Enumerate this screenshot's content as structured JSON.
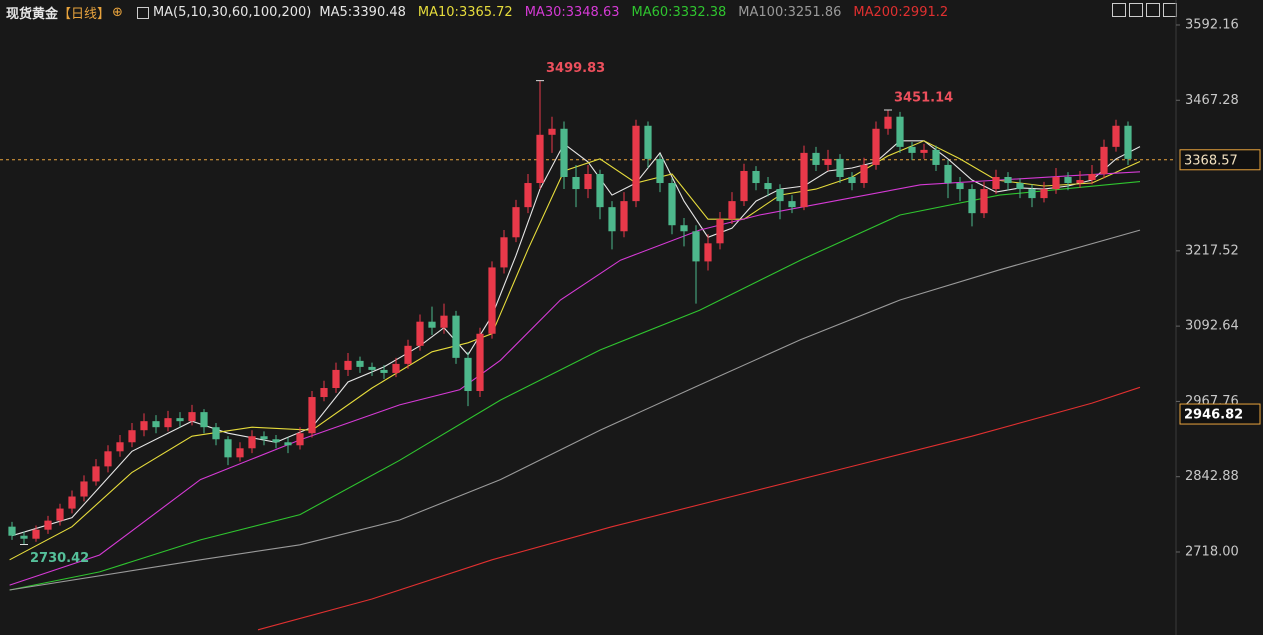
{
  "chart_data": {
    "type": "candlestick",
    "title": "现货黄金",
    "period": "【日线】",
    "indicator": "MA(5,10,30,60,100,200)",
    "up_color": "#e8394a",
    "down_color": "#4db88c",
    "xlim": [
      -1,
      97
    ],
    "ylim": [
      2580.3,
      3633.6
    ],
    "yticks": [
      3592.16,
      3467.28,
      3217.52,
      3092.64,
      2967.76,
      2842.88,
      {
        "value": 2718,
        "label": "2718.00"
      }
    ],
    "open": [
      2760,
      2745,
      2740,
      2755,
      2770,
      2790,
      2810,
      2835,
      2860,
      2885,
      2900,
      2920,
      2935,
      2925,
      2940,
      2935,
      2950,
      2925,
      2905,
      2875,
      2890,
      2910,
      2905,
      2900,
      2895,
      2915,
      2975,
      2990,
      3020,
      3035,
      3025,
      3020,
      3015,
      3030,
      3060,
      3100,
      3090,
      3110,
      3040,
      2985,
      3080,
      3190,
      3240,
      3290,
      3330,
      3410,
      3420,
      3340,
      3320,
      3345,
      3290,
      3250,
      3300,
      3425,
      3370,
      3330,
      3260,
      3250,
      3200,
      3230,
      3270,
      3300,
      3350,
      3330,
      3320,
      3300,
      3290,
      3380,
      3360,
      3370,
      3340,
      3330,
      3360,
      3420,
      3440,
      3390,
      3380,
      3385,
      3360,
      3330,
      3320,
      3280,
      3320,
      3340,
      3330,
      3320,
      3305,
      3320,
      3340,
      3330,
      3335,
      3345,
      3390,
      3425
    ],
    "close": [
      2745,
      2740,
      2755,
      2770,
      2790,
      2810,
      2835,
      2860,
      2885,
      2900,
      2920,
      2935,
      2925,
      2940,
      2935,
      2950,
      2925,
      2905,
      2875,
      2890,
      2910,
      2905,
      2900,
      2895,
      2915,
      2975,
      2990,
      3020,
      3035,
      3025,
      3020,
      3015,
      3030,
      3060,
      3100,
      3090,
      3110,
      3040,
      2985,
      3080,
      3190,
      3240,
      3290,
      3330,
      3410,
      3420,
      3340,
      3320,
      3345,
      3290,
      3250,
      3300,
      3425,
      3370,
      3330,
      3260,
      3250,
      3200,
      3230,
      3270,
      3300,
      3350,
      3330,
      3320,
      3300,
      3290,
      3380,
      3360,
      3370,
      3340,
      3330,
      3360,
      3420,
      3440,
      3390,
      3380,
      3385,
      3360,
      3330,
      3320,
      3280,
      3320,
      3340,
      3330,
      3320,
      3305,
      3320,
      3340,
      3330,
      3335,
      3345,
      3390,
      3425,
      3370
    ],
    "high": [
      2768,
      2752,
      2762,
      2778,
      2798,
      2820,
      2845,
      2872,
      2895,
      2912,
      2932,
      2948,
      2945,
      2952,
      2950,
      2962,
      2955,
      2932,
      2910,
      2900,
      2920,
      2918,
      2912,
      2908,
      2925,
      2985,
      3002,
      3032,
      3048,
      3042,
      3032,
      3028,
      3040,
      3070,
      3112,
      3125,
      3130,
      3118,
      3050,
      3090,
      3200,
      3252,
      3302,
      3345,
      3499.83,
      3440,
      3432,
      3360,
      3360,
      3352,
      3300,
      3315,
      3435,
      3432,
      3378,
      3338,
      3272,
      3260,
      3245,
      3282,
      3315,
      3362,
      3358,
      3340,
      3328,
      3310,
      3392,
      3390,
      3385,
      3378,
      3348,
      3372,
      3432,
      3451.14,
      3448,
      3398,
      3395,
      3392,
      3368,
      3340,
      3328,
      3332,
      3352,
      3348,
      3338,
      3328,
      3332,
      3355,
      3348,
      3350,
      3360,
      3402,
      3435,
      3432
    ],
    "low": [
      2738,
      2730.42,
      2735,
      2748,
      2762,
      2782,
      2802,
      2828,
      2850,
      2876,
      2892,
      2910,
      2915,
      2918,
      2925,
      2928,
      2915,
      2895,
      2862,
      2868,
      2882,
      2895,
      2890,
      2882,
      2888,
      2908,
      2968,
      2982,
      3010,
      3015,
      3010,
      3005,
      3008,
      3022,
      3052,
      3078,
      3080,
      3030,
      2960,
      2975,
      3072,
      3180,
      3232,
      3280,
      3320,
      3380,
      3320,
      3290,
      3305,
      3270,
      3220,
      3240,
      3290,
      3355,
      3315,
      3245,
      3225,
      3130,
      3185,
      3220,
      3262,
      3292,
      3318,
      3308,
      3270,
      3280,
      3285,
      3350,
      3350,
      3330,
      3318,
      3322,
      3352,
      3410,
      3380,
      3368,
      3370,
      3350,
      3305,
      3300,
      3258,
      3272,
      3312,
      3318,
      3305,
      3290,
      3298,
      3312,
      3318,
      3322,
      3328,
      3338,
      3382,
      3360
    ],
    "series": [
      {
        "name": "MA5:3390.48",
        "color": "#e6e6e6",
        "x": [
          0,
          5,
          10,
          15,
          18,
          22,
          25,
          28,
          31,
          34,
          36,
          38,
          40,
          42,
          44,
          46,
          48,
          50,
          52,
          54,
          56,
          58,
          60,
          62,
          64,
          66,
          68,
          70,
          72,
          74,
          76,
          78,
          80,
          82,
          84,
          86,
          88,
          90,
          92,
          94
        ],
        "values": [
          2745,
          2775,
          2885,
          2935,
          2915,
          2900,
          2925,
          3000,
          3025,
          3060,
          3090,
          3045,
          3110,
          3210,
          3320,
          3395,
          3365,
          3310,
          3330,
          3380,
          3300,
          3240,
          3255,
          3300,
          3320,
          3325,
          3350,
          3355,
          3365,
          3400,
          3400,
          3370,
          3335,
          3315,
          3322,
          3320,
          3325,
          3335,
          3370,
          3390.48
        ]
      },
      {
        "name": "MA10:3365.72",
        "color": "#e6dc3c",
        "x": [
          -0.2,
          5,
          10,
          15,
          20,
          25,
          30,
          35,
          38,
          40,
          43,
          46,
          49,
          52,
          55,
          58,
          61,
          64,
          67,
          70,
          73,
          76,
          79,
          82,
          86,
          90,
          94
        ],
        "values": [
          2705,
          2760,
          2850,
          2910,
          2925,
          2920,
          2990,
          3050,
          3065,
          3080,
          3220,
          3350,
          3370,
          3330,
          3345,
          3270,
          3270,
          3310,
          3320,
          3340,
          3375,
          3400,
          3370,
          3335,
          3325,
          3330,
          3365.72
        ]
      },
      {
        "name": "MA30:3348.63",
        "color": "#d53ad5",
        "x": [
          -0.2,
          7.3,
          15.7,
          24,
          32.3,
          37.3,
          40.7,
          45.7,
          50.7,
          57.3,
          62.3,
          69,
          75.7,
          82.3,
          89,
          94
        ],
        "values": [
          2663,
          2713,
          2838,
          2904,
          2962,
          2987,
          3036,
          3136,
          3202,
          3252,
          3277,
          3302,
          3327,
          3335,
          3343,
          3348.63
        ]
      },
      {
        "name": "MA60:3332.38",
        "color": "#2fc42f",
        "x": [
          -0.2,
          7.3,
          15.7,
          24,
          32.3,
          40.7,
          49,
          57.3,
          65.7,
          74,
          82.3,
          94
        ],
        "values": [
          2655,
          2685,
          2738,
          2780,
          2870,
          2970,
          3053,
          3119,
          3202,
          3277,
          3310,
          3332.38
        ]
      },
      {
        "name": "MA100:3251.86",
        "color": "#9a9a9a",
        "x": [
          -0.2,
          15.7,
          24,
          32.3,
          40.7,
          49,
          57.3,
          65.7,
          74,
          82.3,
          94
        ],
        "values": [
          2655,
          2705,
          2730,
          2771,
          2838,
          2920,
          2995,
          3070,
          3136,
          3186,
          3251.86
        ]
      },
      {
        "name": "MA200:2991.2",
        "color": "#e03030",
        "x": [
          20.5,
          30,
          40,
          50,
          60,
          70,
          80,
          90,
          94
        ],
        "values": [
          2589,
          2640,
          2705,
          2760,
          2810,
          2860,
          2910,
          2965,
          2991.2
        ]
      }
    ],
    "annotations": [
      {
        "x": 44,
        "value": 3499.83,
        "position": "above",
        "color": "#ec4f5c"
      },
      {
        "x": 73,
        "value": 3451.14,
        "position": "above",
        "color": "#ec4f5c"
      },
      {
        "x": 1,
        "value": 2730.42,
        "position": "below",
        "color": "#55c09a"
      }
    ],
    "price_tags": [
      {
        "value": 3368.57,
        "line": true,
        "color": "#e8a33d"
      },
      {
        "value": 2946.82,
        "line": false,
        "color": "#e8a33d"
      }
    ]
  }
}
